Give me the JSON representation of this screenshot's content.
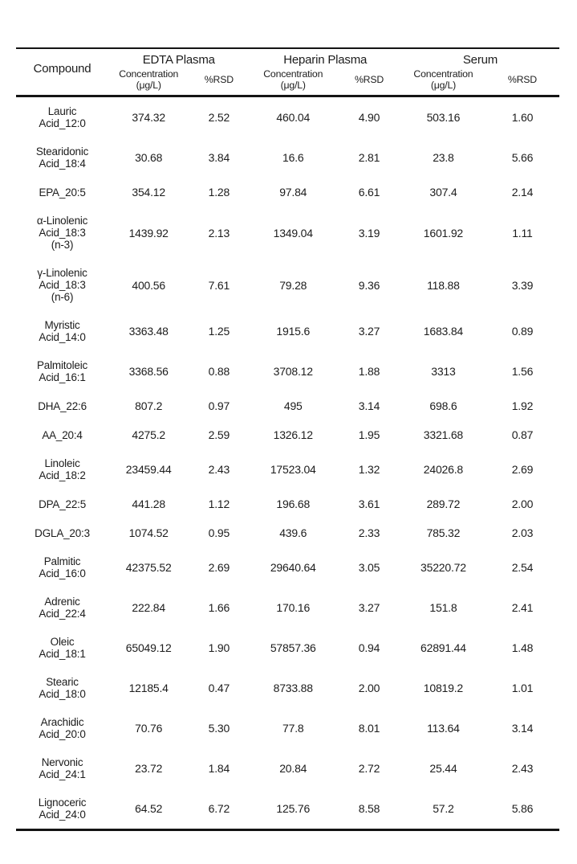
{
  "colors": {
    "background": "#ffffff",
    "text": "#1c1c1c",
    "rule": "#141414"
  },
  "table": {
    "header": {
      "compound_label": "Compound",
      "groups": [
        {
          "label": "EDTA Plasma"
        },
        {
          "label": "Heparin Plasma"
        },
        {
          "label": "Serum"
        }
      ],
      "sub_concentration": "Concentration\n(μg/L)",
      "sub_rsd": "%RSD"
    },
    "rows": [
      {
        "compound": "Lauric\nAcid_12:0",
        "values": [
          "374.32",
          "2.52",
          "460.04",
          "4.90",
          "503.16",
          "1.60"
        ]
      },
      {
        "compound": "Stearidonic\nAcid_18:4",
        "values": [
          "30.68",
          "3.84",
          "16.6",
          "2.81",
          "23.8",
          "5.66"
        ]
      },
      {
        "compound": "EPA_20:5",
        "values": [
          "354.12",
          "1.28",
          "97.84",
          "6.61",
          "307.4",
          "2.14"
        ]
      },
      {
        "compound": "α-Linolenic\nAcid_18:3\n(n-3)",
        "values": [
          "1439.92",
          "2.13",
          "1349.04",
          "3.19",
          "1601.92",
          "1.11"
        ]
      },
      {
        "compound": "γ-Linolenic\nAcid_18:3\n(n-6)",
        "values": [
          "400.56",
          "7.61",
          "79.28",
          "9.36",
          "118.88",
          "3.39"
        ]
      },
      {
        "compound": "Myristic\nAcid_14:0",
        "values": [
          "3363.48",
          "1.25",
          "1915.6",
          "3.27",
          "1683.84",
          "0.89"
        ]
      },
      {
        "compound": "Palmitoleic\nAcid_16:1",
        "values": [
          "3368.56",
          "0.88",
          "3708.12",
          "1.88",
          "3313",
          "1.56"
        ]
      },
      {
        "compound": "DHA_22:6",
        "values": [
          "807.2",
          "0.97",
          "495",
          "3.14",
          "698.6",
          "1.92"
        ]
      },
      {
        "compound": "AA_20:4",
        "values": [
          "4275.2",
          "2.59",
          "1326.12",
          "1.95",
          "3321.68",
          "0.87"
        ]
      },
      {
        "compound": "Linoleic\nAcid_18:2",
        "values": [
          "23459.44",
          "2.43",
          "17523.04",
          "1.32",
          "24026.8",
          "2.69"
        ]
      },
      {
        "compound": "DPA_22:5",
        "values": [
          "441.28",
          "1.12",
          "196.68",
          "3.61",
          "289.72",
          "2.00"
        ]
      },
      {
        "compound": "DGLA_20:3",
        "values": [
          "1074.52",
          "0.95",
          "439.6",
          "2.33",
          "785.32",
          "2.03"
        ]
      },
      {
        "compound": "Palmitic\nAcid_16:0",
        "values": [
          "42375.52",
          "2.69",
          "29640.64",
          "3.05",
          "35220.72",
          "2.54"
        ]
      },
      {
        "compound": "Adrenic\nAcid_22:4",
        "values": [
          "222.84",
          "1.66",
          "170.16",
          "3.27",
          "151.8",
          "2.41"
        ]
      },
      {
        "compound": "Oleic\nAcid_18:1",
        "values": [
          "65049.12",
          "1.90",
          "57857.36",
          "0.94",
          "62891.44",
          "1.48"
        ]
      },
      {
        "compound": "Stearic\nAcid_18:0",
        "values": [
          "12185.4",
          "0.47",
          "8733.88",
          "2.00",
          "10819.2",
          "1.01"
        ]
      },
      {
        "compound": "Arachidic\nAcid_20:0",
        "values": [
          "70.76",
          "5.30",
          "77.8",
          "8.01",
          "113.64",
          "3.14"
        ]
      },
      {
        "compound": "Nervonic\nAcid_24:1",
        "values": [
          "23.72",
          "1.84",
          "20.84",
          "2.72",
          "25.44",
          "2.43"
        ]
      },
      {
        "compound": "Lignoceric\nAcid_24:0",
        "values": [
          "64.52",
          "6.72",
          "125.76",
          "8.58",
          "57.2",
          "5.86"
        ]
      }
    ]
  }
}
